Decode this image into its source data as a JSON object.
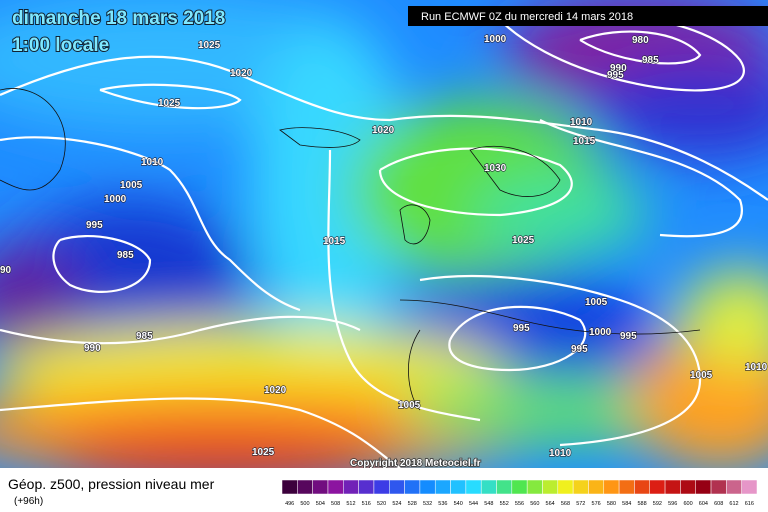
{
  "header": {
    "date": "dimanche 18 mars 2018",
    "time": "1:00 locale",
    "run": "Run ECMWF 0Z du mercredi 14 mars 2018"
  },
  "isobar_labels": [
    "1025",
    "1020",
    "1025",
    "1000",
    "980",
    "985",
    "990",
    "995",
    "1010",
    "1015",
    "1020",
    "1010",
    "1005",
    "1000",
    "995",
    "985",
    "90",
    "1030",
    "1025",
    "1015",
    "985",
    "990",
    "1005",
    "995",
    "1000",
    "995",
    "995",
    "1020",
    "1005",
    "1005",
    "1010",
    "1025",
    "1010"
  ],
  "copyright": "Copyright 2018 Meteociel.fr",
  "footer": {
    "title": "Géop. z500, pression niveau mer",
    "subtitle": "(+96h)",
    "scale": [
      496,
      500,
      504,
      508,
      512,
      516,
      520,
      524,
      528,
      532,
      536,
      540,
      544,
      548,
      552,
      556,
      560,
      564,
      568,
      572,
      576,
      580,
      584,
      588,
      592,
      596,
      600,
      604,
      608,
      612,
      616
    ]
  }
}
